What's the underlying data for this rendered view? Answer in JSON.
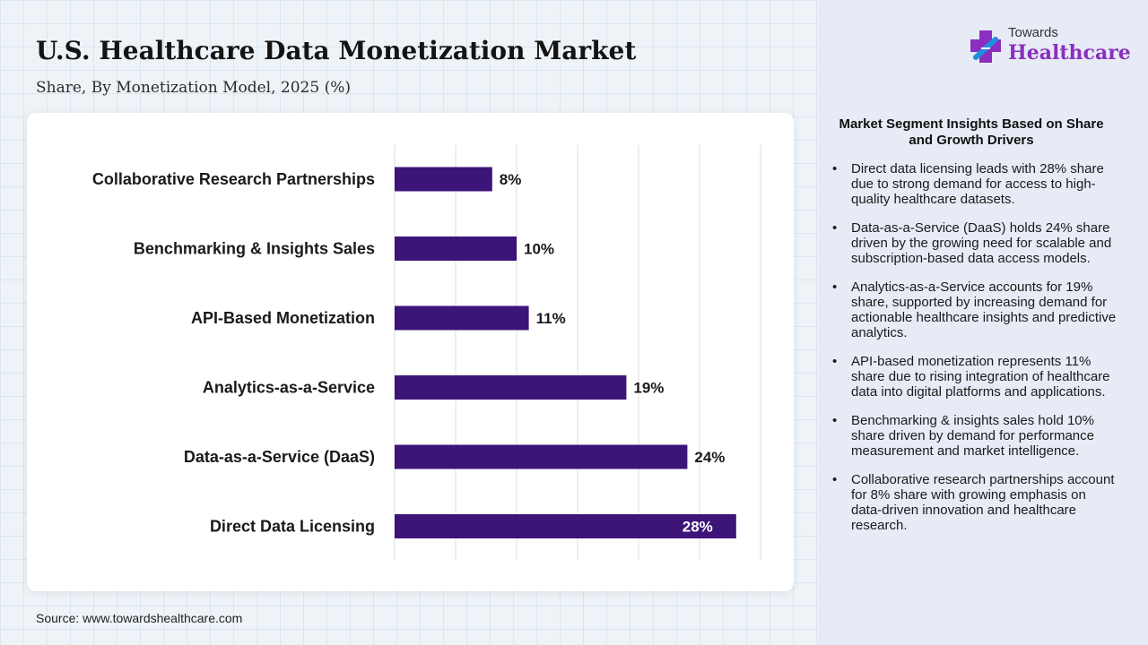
{
  "header": {
    "title": "U.S. Healthcare Data Monetization Market",
    "subtitle": "Share, By Monetization Model, 2025 (%)"
  },
  "source": "Source: www.towardshealthcare.com",
  "logo": {
    "top": "Towards",
    "main": "Healthcare",
    "icon": "cross-plus-icon"
  },
  "colors": {
    "bar": "#3d1478",
    "logo_purple": "#8a2fbf",
    "logo_blue": "#1f8fe0",
    "inside_label": "#ffffff"
  },
  "chart_data": {
    "type": "bar",
    "orientation": "horizontal",
    "categories": [
      "Collaborative Research Partnerships",
      "Benchmarking & Insights Sales",
      "API-Based Monetization",
      "Analytics-as-a-Service",
      "Data-as-a-Service (DaaS)",
      "Direct Data Licensing"
    ],
    "values": [
      8,
      10,
      11,
      19,
      24,
      28
    ],
    "labels": [
      "8%",
      "10%",
      "11%",
      "19%",
      "24%",
      "28%"
    ],
    "xlim": [
      0,
      30
    ],
    "grid": true,
    "legend": "none"
  },
  "insights": {
    "title": "Market Segment Insights Based on Share and Growth Drivers",
    "items": [
      "Direct data licensing leads with 28% share due to strong demand for access to high-quality healthcare datasets.",
      "Data-as-a-Service (DaaS) holds 24% share driven by the growing need for scalable and subscription-based data access models.",
      "Analytics-as-a-Service accounts for 19% share, supported by increasing demand for actionable healthcare insights and predictive analytics.",
      "API-based monetization represents 11% share due to rising integration of healthcare data into digital platforms and applications.",
      "Benchmarking & insights sales hold 10% share driven by demand for performance measurement and market intelligence.",
      "Collaborative research partnerships account for 8% share with growing emphasis on data-driven innovation and healthcare research."
    ]
  }
}
